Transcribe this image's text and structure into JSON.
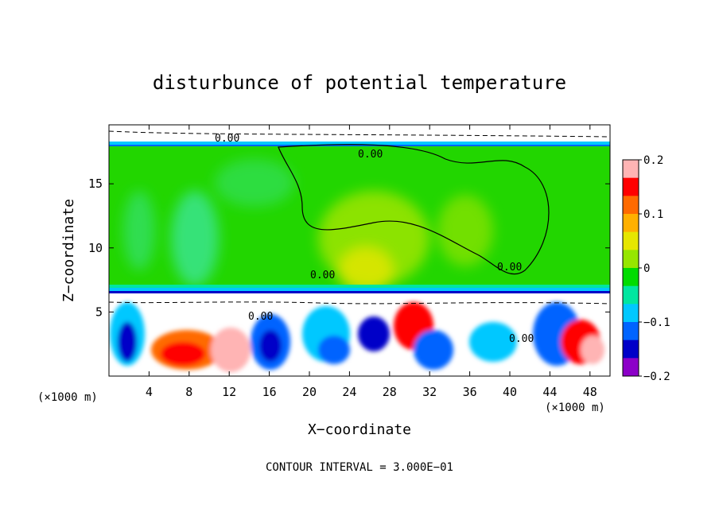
{
  "chart_data": {
    "type": "heatmap",
    "title": "disturbunce of potential temperature",
    "xlabel": "X−coordinate",
    "ylabel": "Z−coordinate",
    "x_unit_left": "(×1000 m)",
    "x_unit_right": "(×1000 m)",
    "footer": "CONTOUR INTERVAL = 3.000E−01",
    "xlim": [
      0,
      50
    ],
    "ylim": [
      0,
      19.6
    ],
    "x_ticks": [
      4,
      8,
      12,
      16,
      20,
      24,
      28,
      32,
      36,
      40,
      44,
      48
    ],
    "x_tick_labels": [
      "4",
      "8",
      "12",
      "16",
      "20",
      "24",
      "28",
      "32",
      "36",
      "40",
      "44",
      "48"
    ],
    "y_ticks": [
      5,
      10,
      15
    ],
    "y_tick_labels": [
      "5",
      "10",
      "15"
    ],
    "colorbar": {
      "range": [
        -0.2,
        0.2
      ],
      "ticks": [
        0.2,
        0.1,
        0,
        -0.1,
        -0.2
      ],
      "tick_labels": [
        "0.2",
        "0.1",
        "0",
        "−0.1",
        "−0.2"
      ],
      "colors": [
        "#ffb4b4",
        "#ff0000",
        "#ff6a00",
        "#ffb000",
        "#e6e600",
        "#96e600",
        "#00dc00",
        "#00e6a0",
        "#00c8ff",
        "#0064ff",
        "#0000c8",
        "#8c00c8"
      ]
    },
    "contour_labels": [
      "0.00",
      "0.00",
      "0.00",
      "0.00",
      "0.00",
      "0.00"
    ]
  }
}
